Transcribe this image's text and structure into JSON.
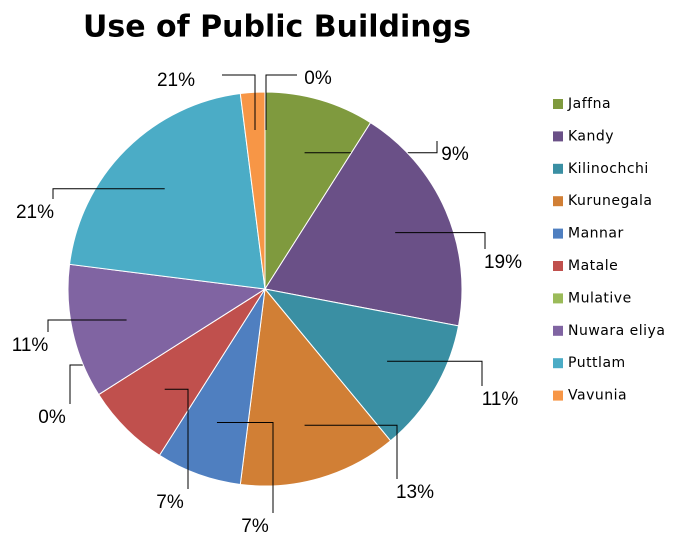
{
  "chart_data": {
    "type": "pie",
    "title": "Use of Public Buildings",
    "categories": [
      "Jaffna",
      "Kandy",
      "Kilinochchi",
      "Kurunegala",
      "Mannar",
      "Matale",
      "Mulative",
      "Nuwara eliya",
      "Puttlam",
      "Vavunia"
    ],
    "values": [
      9,
      19,
      11,
      13,
      7,
      7,
      0,
      11,
      21,
      2
    ],
    "value_labels": [
      "9%",
      "19%",
      "11%",
      "13%",
      "7%",
      "7%",
      "0%",
      "11%",
      "21%",
      null
    ],
    "colors": [
      "#7f9a3e",
      "#6a5087",
      "#3a8fa3",
      "#d17f35",
      "#4f7fc0",
      "#c0504d",
      "#9bbb59",
      "#8064a2",
      "#4bacc6",
      "#f79646"
    ],
    "annotations": [
      "21%",
      "0%"
    ],
    "legend": "right"
  }
}
